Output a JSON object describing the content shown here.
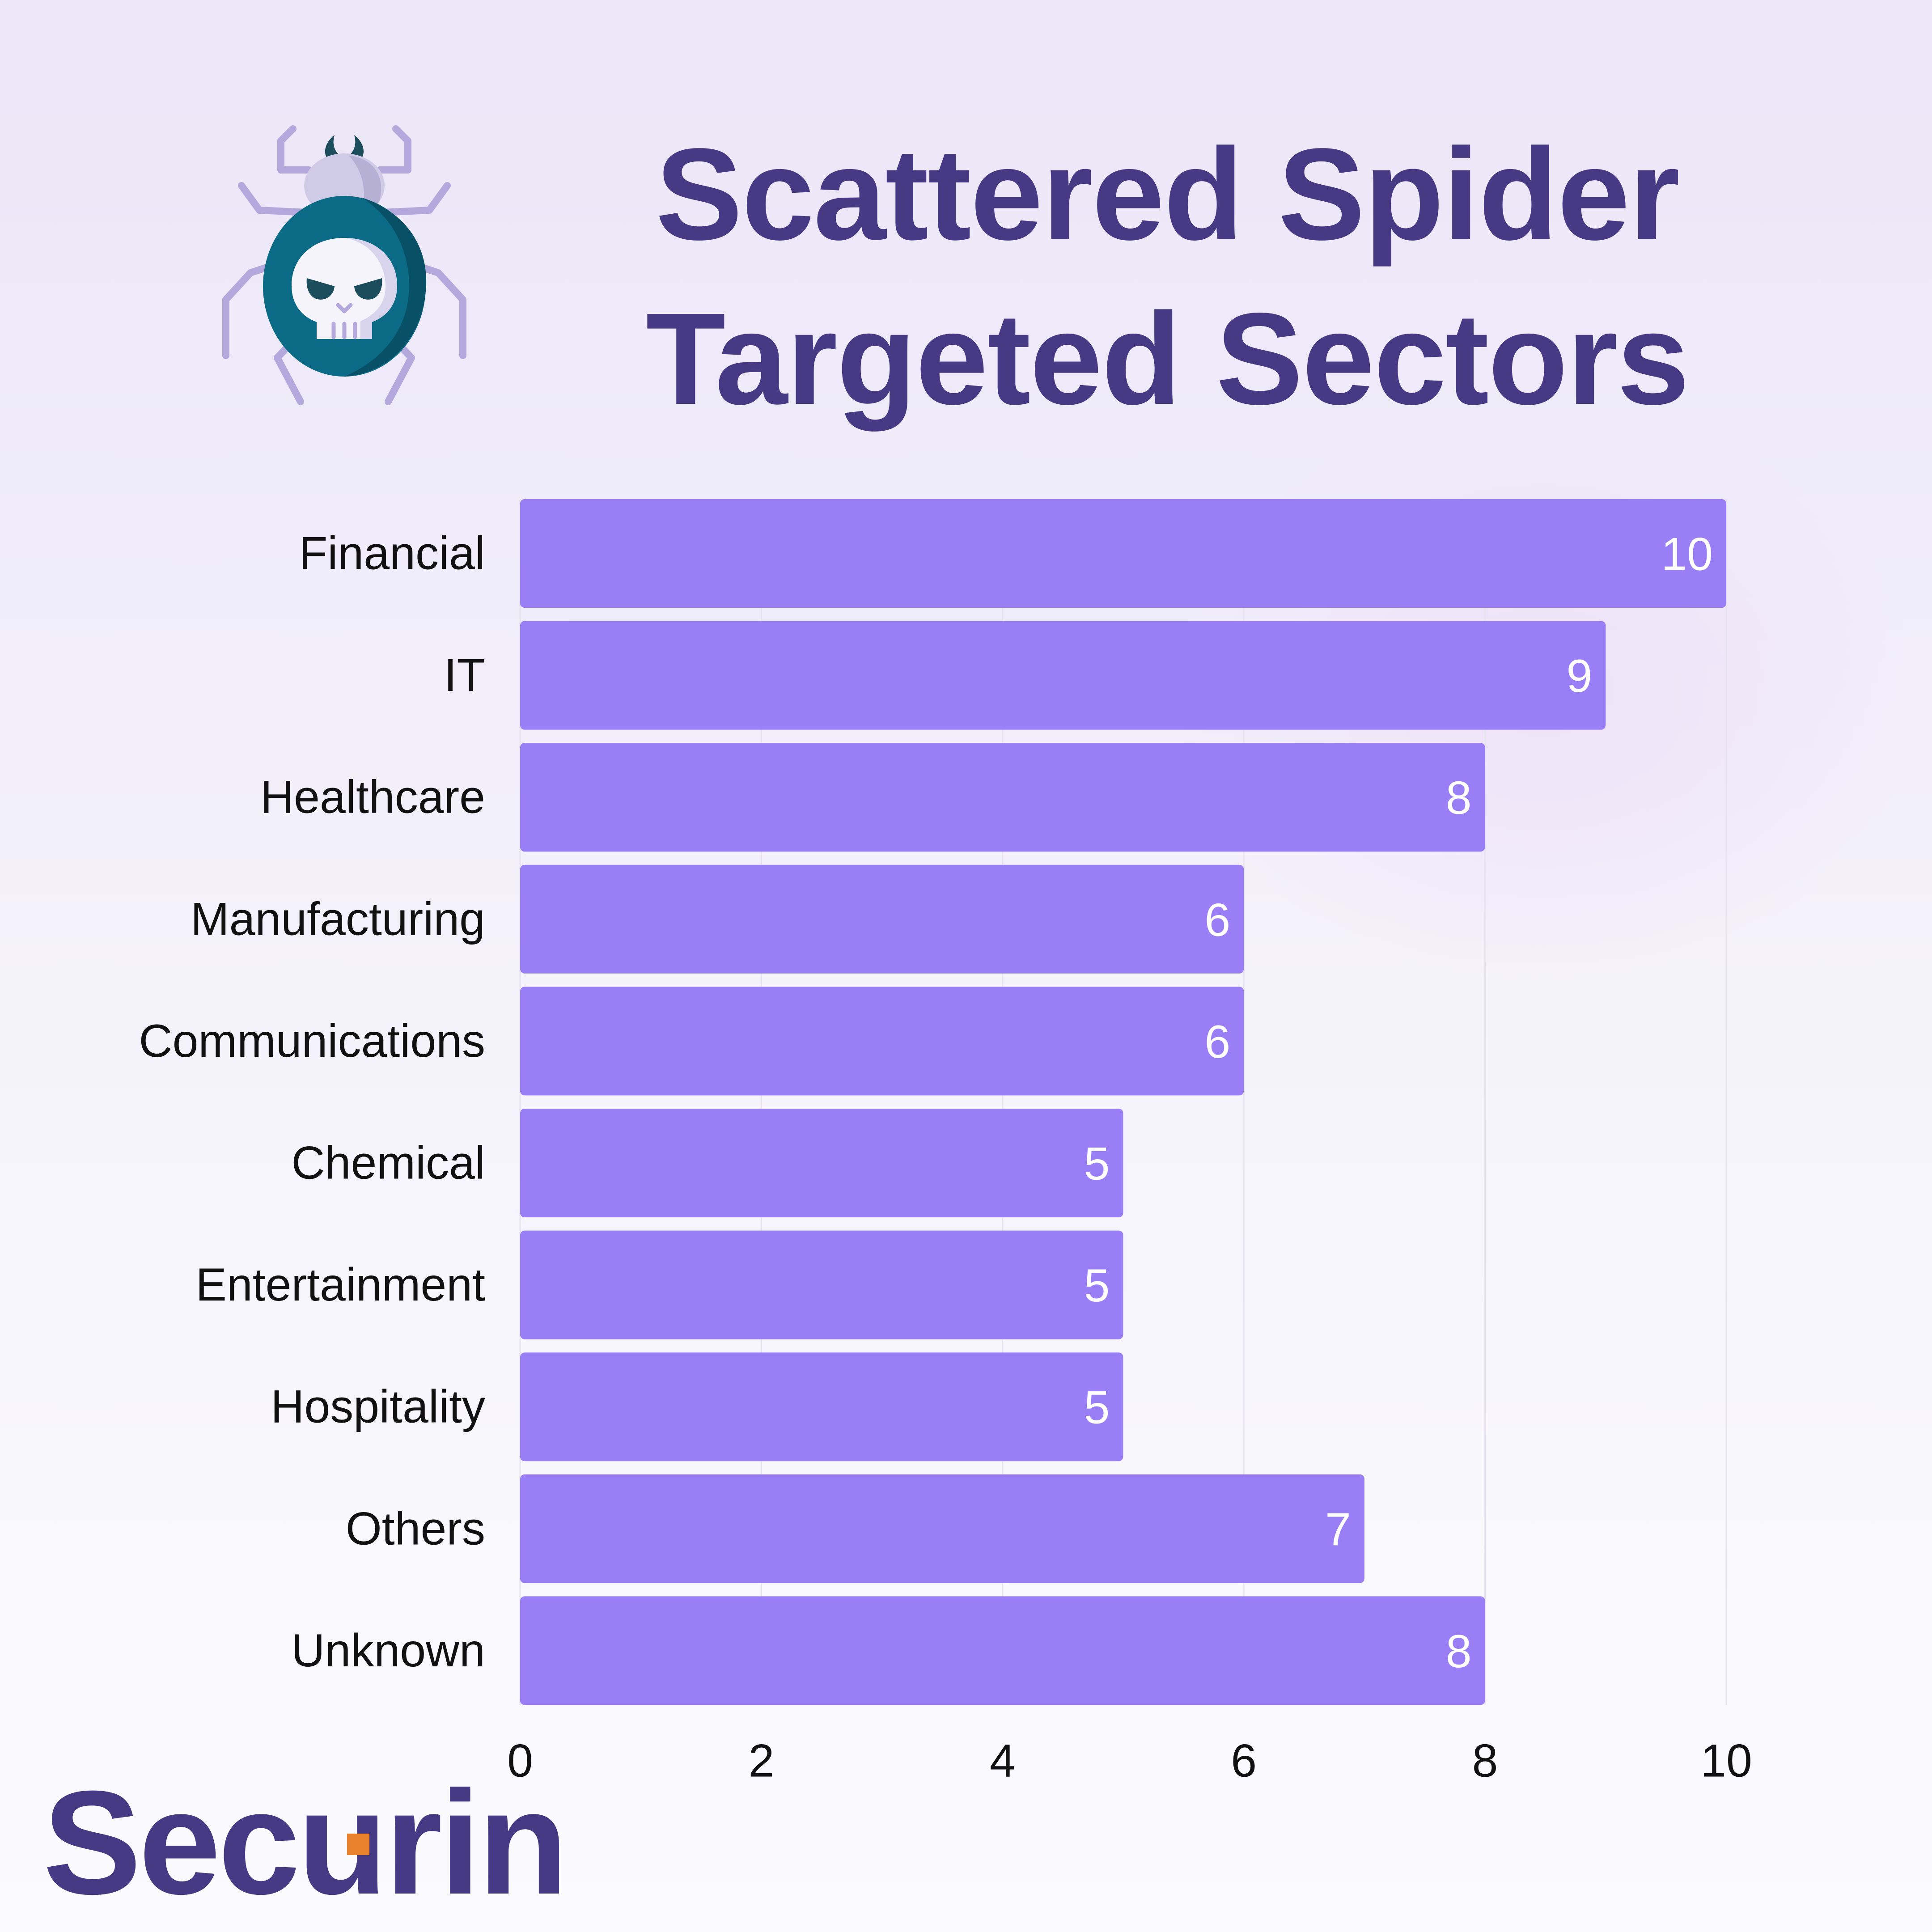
{
  "title_lines": [
    "Scattered Spider",
    "Targeted Sectors"
  ],
  "brand": {
    "name": "Securin",
    "accent_color": "#e9822d",
    "text_color": "#463a84"
  },
  "icons": {
    "header": "spider-skull-icon"
  },
  "colors": {
    "bar": "#9a7ef5",
    "bar_label": "#ffffff",
    "axis_text": "#111111",
    "grid": "#e6e3ee"
  },
  "chart_data": {
    "type": "bar",
    "orientation": "horizontal",
    "categories": [
      "Financial",
      "IT",
      "Healthcare",
      "Manufacturing",
      "Communications",
      "Chemical",
      "Entertainment",
      "Hospitality",
      "Others",
      "Unknown"
    ],
    "values": [
      10,
      9,
      8,
      6,
      6,
      5,
      5,
      5,
      7,
      8
    ],
    "xlim": [
      0,
      10
    ],
    "xticks": [
      0,
      2,
      4,
      6,
      8,
      10
    ],
    "grid": true,
    "legend": "none",
    "data_labels": true
  }
}
